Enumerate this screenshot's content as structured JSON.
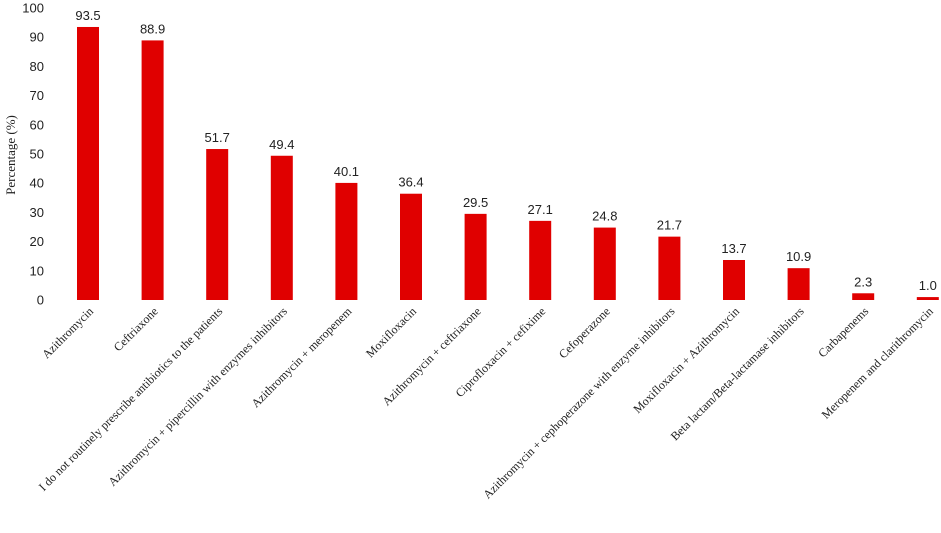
{
  "chart_data": {
    "type": "bar",
    "ylabel": "Percentage (%)",
    "ylim": [
      0,
      100
    ],
    "yticks": [
      0,
      10,
      20,
      30,
      40,
      50,
      60,
      70,
      80,
      90,
      100
    ],
    "grid": false,
    "bar_color": "#e00000",
    "categories": [
      "Azithromycin",
      "Ceftriaxone",
      "I do not routinely prescribe antibiotics to the patients",
      "Azithromycin + pipercillin with enzymes inhibitors",
      "Azithromycin + meropenem",
      "Moxifloxacin",
      "Azithromycin + ceftriaxone",
      "Ciprofloxacin + cefixime",
      "Cefoperazone",
      "Azithromycin + cephoperazone with enzyme inhibitors",
      "Moxifloxacin + Azithromycin",
      "Beta lactam/Beta-lactamase inhibitors",
      "Carbapenems",
      "Meropenem and clarithromycin"
    ],
    "values": [
      93.5,
      88.9,
      51.7,
      49.4,
      40.1,
      36.4,
      29.5,
      27.1,
      24.8,
      21.7,
      13.7,
      10.9,
      2.3,
      1.0
    ],
    "value_labels": [
      "93.5",
      "88.9",
      "51.7",
      "49.4",
      "40.1",
      "36.4",
      "29.5",
      "27.1",
      "24.8",
      "21.7",
      "13.7",
      "10.9",
      "2.3",
      "1.0"
    ]
  }
}
